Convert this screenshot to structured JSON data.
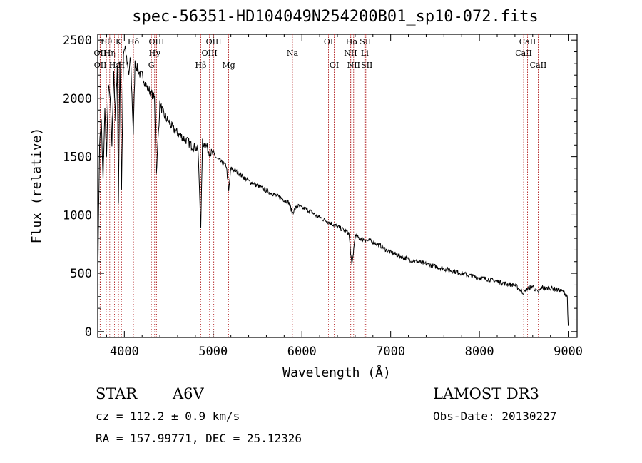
{
  "chart_data": {
    "type": "line",
    "title": "spec-56351-HD104049N254200B01_sp10-072.fits",
    "xlabel": "Wavelength (Å)",
    "ylabel": "Flux (relative)",
    "xlim": [
      3700,
      9100
    ],
    "ylim": [
      -50,
      2550
    ],
    "x_ticks": [
      4000,
      5000,
      6000,
      7000,
      8000,
      9000
    ],
    "y_ticks": [
      0,
      500,
      1000,
      1500,
      2000,
      2500
    ],
    "grid": false,
    "series": [
      {
        "name": "spectrum",
        "x": [
          3700,
          3720,
          3740,
          3760,
          3780,
          3800,
          3820,
          3840,
          3860,
          3880,
          3900,
          3920,
          3933,
          3950,
          3968,
          3990,
          4010,
          4030,
          4050,
          4070,
          4101,
          4120,
          4150,
          4180,
          4200,
          4250,
          4300,
          4340,
          4360,
          4400,
          4450,
          4500,
          4550,
          4600,
          4650,
          4700,
          4750,
          4800,
          4830,
          4861,
          4880,
          4920,
          4950,
          5000,
          5050,
          5100,
          5150,
          5175,
          5200,
          5250,
          5300,
          5350,
          5400,
          5450,
          5500,
          5550,
          5600,
          5650,
          5700,
          5750,
          5800,
          5850,
          5893,
          5950,
          6000,
          6050,
          6100,
          6150,
          6200,
          6250,
          6300,
          6350,
          6400,
          6450,
          6500,
          6530,
          6563,
          6600,
          6650,
          6700,
          6750,
          6800,
          6850,
          6900,
          6950,
          7000,
          7100,
          7200,
          7300,
          7400,
          7500,
          7600,
          7700,
          7800,
          7900,
          8000,
          8100,
          8200,
          8300,
          8400,
          8498,
          8542,
          8600,
          8662,
          8700,
          8750,
          8800,
          8850,
          8900,
          8950,
          8990,
          9000
        ],
        "y": [
          400,
          1600,
          1800,
          1300,
          1900,
          1500,
          2100,
          2000,
          1600,
          2250,
          1800,
          2300,
          1100,
          2350,
          1200,
          2400,
          2450,
          2300,
          2200,
          2350,
          1700,
          2300,
          2250,
          2200,
          2200,
          2100,
          2050,
          2000,
          1350,
          1950,
          1850,
          1800,
          1740,
          1700,
          1670,
          1640,
          1600,
          1580,
          1560,
          900,
          1620,
          1600,
          1550,
          1520,
          1480,
          1450,
          1420,
          1200,
          1400,
          1380,
          1350,
          1320,
          1290,
          1270,
          1250,
          1230,
          1210,
          1190,
          1170,
          1150,
          1130,
          1110,
          1020,
          1080,
          1060,
          1050,
          1030,
          1000,
          980,
          960,
          940,
          920,
          900,
          880,
          860,
          840,
          560,
          820,
          800,
          790,
          780,
          770,
          750,
          730,
          700,
          680,
          650,
          620,
          600,
          580,
          560,
          540,
          520,
          500,
          480,
          460,
          450,
          430,
          410,
          400,
          330,
          370,
          390,
          330,
          380,
          370,
          375,
          365,
          355,
          340,
          300,
          50
        ]
      }
    ],
    "line_markers": [
      {
        "label": "Hθ",
        "wl": 3797,
        "row": 1
      },
      {
        "label": "OII",
        "wl": 3727,
        "row": 2
      },
      {
        "label": "OII",
        "wl": 3729,
        "row": 3
      },
      {
        "label": "Hη",
        "wl": 3835,
        "row": 2
      },
      {
        "label": "Hε",
        "wl": 3889,
        "row": 3
      },
      {
        "label": "K",
        "wl": 3934,
        "row": 1
      },
      {
        "label": "H",
        "wl": 3968,
        "row": 3
      },
      {
        "label": "Hδ",
        "wl": 4102,
        "row": 1
      },
      {
        "label": "OIII",
        "wl": 4363,
        "row": 1
      },
      {
        "label": "Hγ",
        "wl": 4341,
        "row": 2
      },
      {
        "label": "G",
        "wl": 4304,
        "row": 3
      },
      {
        "label": "Hβ",
        "wl": 4861,
        "row": 3
      },
      {
        "label": "OIII",
        "wl": 4959,
        "row": 2
      },
      {
        "label": "OIII",
        "wl": 5007,
        "row": 1
      },
      {
        "label": "Mg",
        "wl": 5175,
        "row": 3
      },
      {
        "label": "Na",
        "wl": 5893,
        "row": 2
      },
      {
        "label": "OI",
        "wl": 6300,
        "row": 1
      },
      {
        "label": "OI",
        "wl": 6364,
        "row": 3
      },
      {
        "label": "NII",
        "wl": 6548,
        "row": 2
      },
      {
        "label": "Hα",
        "wl": 6563,
        "row": 1
      },
      {
        "label": "NII",
        "wl": 6583,
        "row": 3
      },
      {
        "label": "Li",
        "wl": 6708,
        "row": 2
      },
      {
        "label": "SII",
        "wl": 6716,
        "row": 1
      },
      {
        "label": "SII",
        "wl": 6731,
        "row": 3
      },
      {
        "label": "CaII",
        "wl": 8498,
        "row": 2
      },
      {
        "label": "CaII",
        "wl": 8542,
        "row": 1
      },
      {
        "label": "CaII",
        "wl": 8662,
        "row": 3
      }
    ]
  },
  "info": {
    "object_class": "STAR",
    "subclass": "A6V",
    "survey": "LAMOST DR3",
    "redshift": "cz = 112.2 ± 0.9 km/s",
    "obs_date": "Obs-Date: 20130227",
    "coords": "RA = 157.99771, DEC =  25.12326"
  },
  "colors": {
    "spectrum": "#000000",
    "marker_line": "#b22222",
    "text": "#000000"
  }
}
